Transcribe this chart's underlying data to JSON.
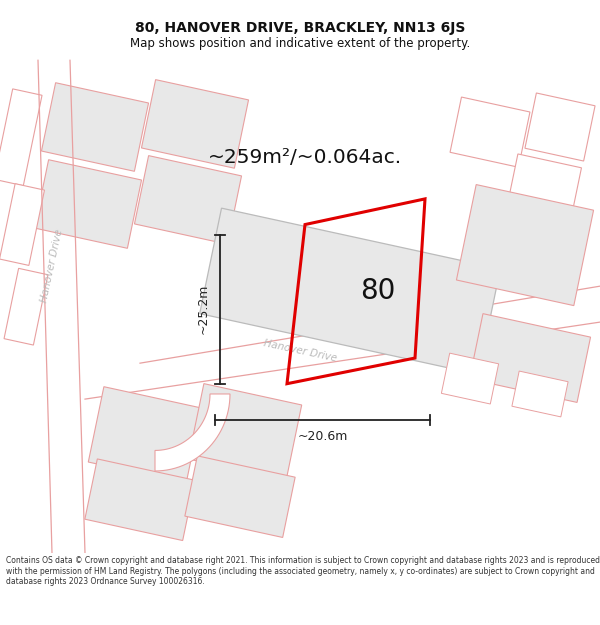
{
  "title_line1": "80, HANOVER DRIVE, BRACKLEY, NN13 6JS",
  "title_line2": "Map shows position and indicative extent of the property.",
  "area_text": "~259m²/~0.064ac.",
  "dim_height": "~25.2m",
  "dim_width": "~20.6m",
  "property_number": "80",
  "footer_text": "Contains OS data © Crown copyright and database right 2021. This information is subject to Crown copyright and database rights 2023 and is reproduced with the permission of HM Land Registry. The polygons (including the associated geometry, namely x, y co-ordinates) are subject to Crown copyright and database rights 2023 Ordnance Survey 100026316.",
  "bg_color": "#ffffff",
  "map_bg": "#ffffff",
  "grey_fill": "#e8e8e8",
  "grey_edge": "#bbbbbb",
  "pink_fill": "#ffffff",
  "pink_edge": "#e8a0a0",
  "property_outline": "#e00000",
  "dim_color": "#222222",
  "title_color": "#111111",
  "footer_color": "#333333",
  "road_text_color": "#bbbbbb",
  "area_color": "#111111"
}
